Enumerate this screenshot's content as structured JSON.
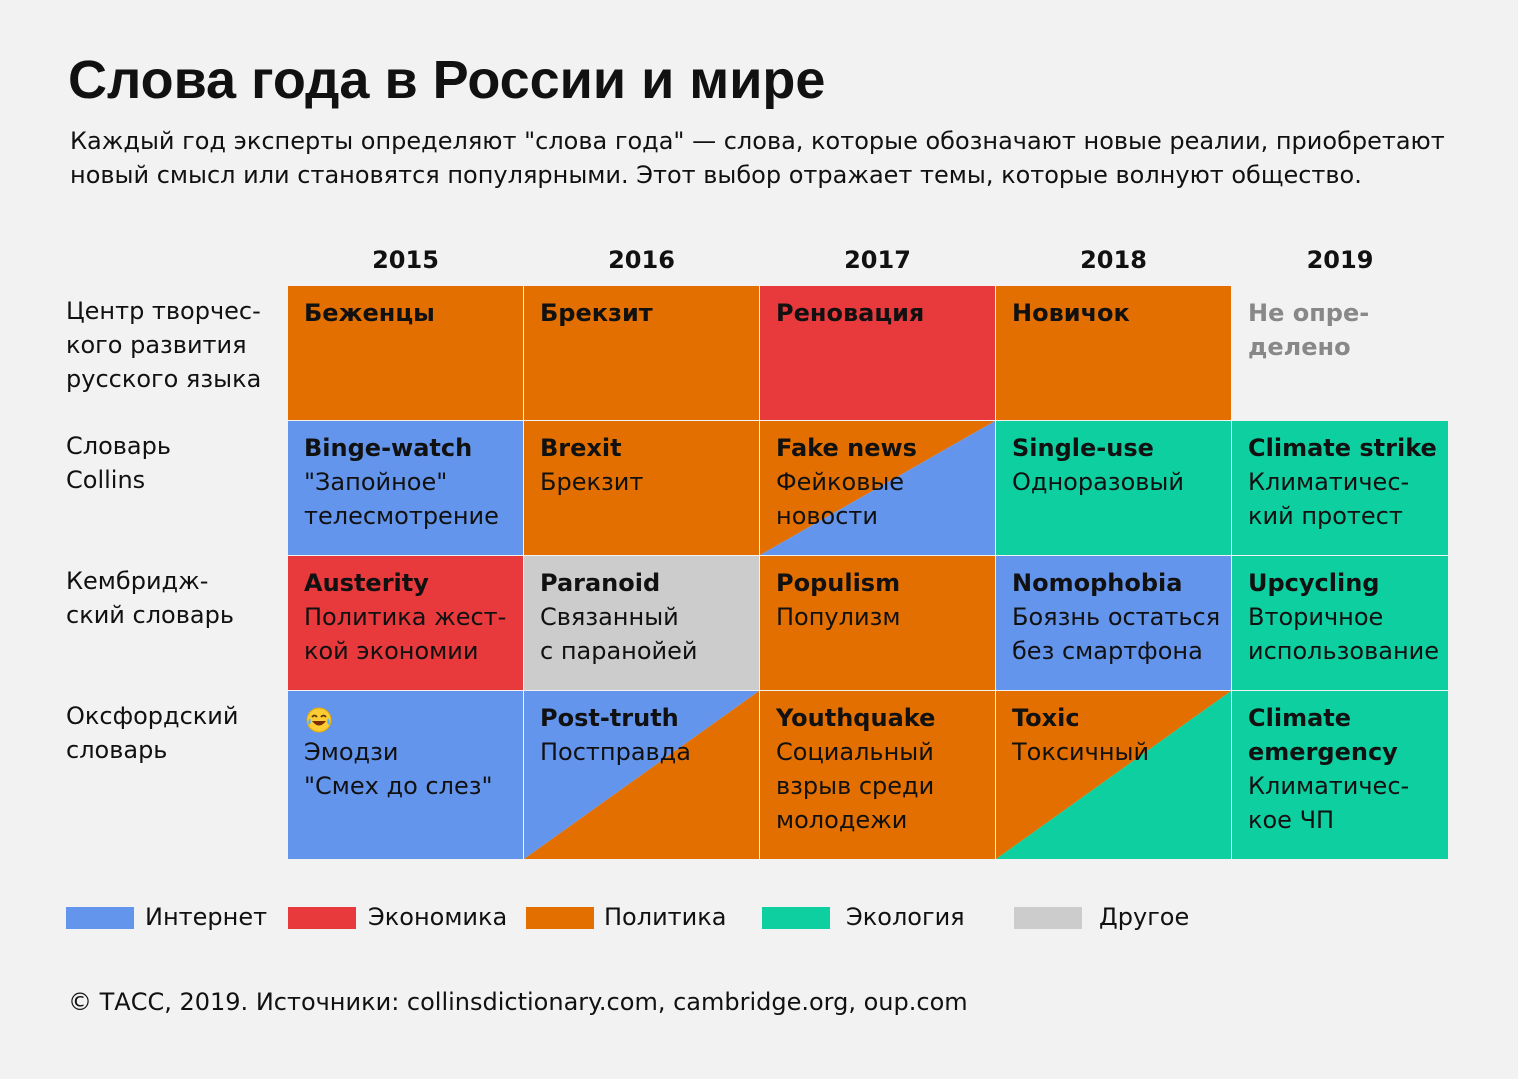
{
  "title": "Слова года в России и мире",
  "subtitle": "Каждый год эксперты определяют \"слова года\" — слова, которые обозначают новые реалии, приобретают новый смысл или становятся популярными. Этот выбор отражает темы, которые волнуют общество.",
  "colors": {
    "internet": "#6495ed",
    "economy": "#e8393c",
    "politics": "#e36f00",
    "ecology": "#0ecfa0",
    "other": "#cccccc",
    "background": "#f2f2f2"
  },
  "chart_data": {
    "type": "table",
    "columns": [
      "2015",
      "2016",
      "2017",
      "2018",
      "2019"
    ],
    "rows": [
      {
        "label": "Центр творчес-\nкого развития\nрусского языка",
        "cells": [
          {
            "word": "Беженцы",
            "translation": "",
            "category": "politics"
          },
          {
            "word": "Брекзит",
            "translation": "",
            "category": "politics"
          },
          {
            "word": "Реновация",
            "translation": "",
            "category": "economy"
          },
          {
            "word": "Новичок",
            "translation": "",
            "category": "politics"
          },
          {
            "word": "Не опре-\nделено",
            "translation": "",
            "category": "none"
          }
        ]
      },
      {
        "label": "Словарь\nCollins",
        "cells": [
          {
            "word": "Binge-watch",
            "translation": "\"Запойное\"\nтелесмотрение",
            "category": "internet"
          },
          {
            "word": "Brexit",
            "translation": "Брекзит",
            "category": "politics"
          },
          {
            "word": "Fake news",
            "translation": "Фейковые\nновости",
            "category": [
              "politics",
              "internet"
            ]
          },
          {
            "word": "Single-use",
            "translation": "Одноразовый",
            "category": "ecology"
          },
          {
            "word": "Climate strike",
            "translation": "Климатичес-\nкий протест",
            "category": "ecology"
          }
        ]
      },
      {
        "label": "Кембридж-\nский словарь",
        "cells": [
          {
            "word": "Austerity",
            "translation": "Политика жест-\nкой экономии",
            "category": "economy"
          },
          {
            "word": "Paranoid",
            "translation": "Связанный\nс паранойей",
            "category": "other"
          },
          {
            "word": "Populism",
            "translation": "Популизм",
            "category": "politics"
          },
          {
            "word": "Nomophobia",
            "translation": "Боязнь остаться\nбез смартфона",
            "category": "internet"
          },
          {
            "word": "Upcycling",
            "translation": "Вторичное\nиспользование",
            "category": "ecology"
          }
        ]
      },
      {
        "label": "Оксфордский\nсловарь",
        "cells": [
          {
            "word": "",
            "translation": "Эмодзи\n\"Смех до слез\"",
            "category": "internet",
            "icon": "tears-of-joy-emoji-icon"
          },
          {
            "word": "Post-truth",
            "translation": "Постправда",
            "category": [
              "internet",
              "politics"
            ]
          },
          {
            "word": "Youthquake",
            "translation": "Социальный\nвзрыв среди\nмолодежи",
            "category": "politics"
          },
          {
            "word": "Toxic",
            "translation": "Токсичный",
            "category": [
              "politics",
              "ecology"
            ]
          },
          {
            "word": "Climate\nemergency",
            "translation": "Климатичес-\nкое ЧП",
            "category": "ecology"
          }
        ]
      }
    ],
    "legend": [
      {
        "key": "internet",
        "label": "Интернет"
      },
      {
        "key": "economy",
        "label": "Экономика"
      },
      {
        "key": "politics",
        "label": "Политика"
      },
      {
        "key": "ecology",
        "label": "Экология"
      },
      {
        "key": "other",
        "label": "Другое"
      }
    ]
  },
  "footer": "© ТАСС, 2019. Источники: collinsdictionary.com, cambridge.org, oup.com"
}
